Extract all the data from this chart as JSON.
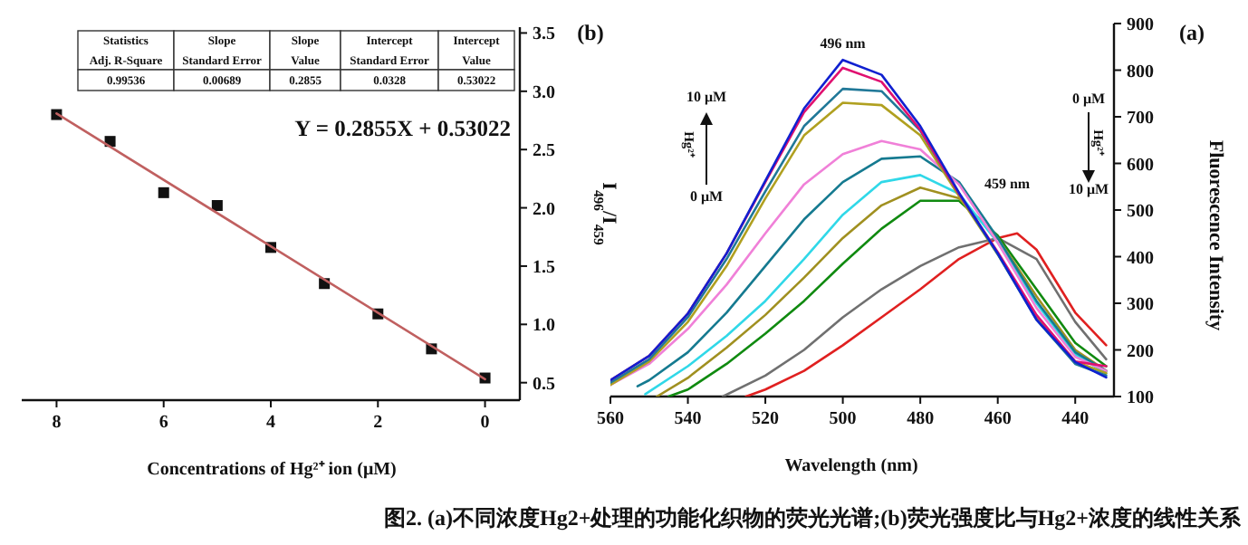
{
  "chart_data": [
    {
      "type": "scatter",
      "xlabel": "Concentrations of Hg²⁺ ion (μM)",
      "ylabel": "I$_{496}$/I$_{459}$",
      "xlim": [
        8.65,
        -0.65
      ],
      "ylim": [
        0.35,
        3.55
      ],
      "xticks": [
        0,
        2,
        4,
        6,
        8
      ],
      "yticks": [
        0.5,
        {
          "value": 1,
          "label": "1.0"
        },
        1.5,
        {
          "value": 2,
          "label": "2.0"
        },
        2.5,
        {
          "value": 3,
          "label": "3.0"
        },
        3.5
      ],
      "series": [
        {
          "marker": "square",
          "color": "#111111",
          "x": [
            8,
            7,
            6,
            5,
            4,
            3,
            2,
            1,
            0
          ],
          "values": [
            2.8,
            2.57,
            2.13,
            2.02,
            1.66,
            1.35,
            1.09,
            0.79,
            0.54
          ]
        },
        {
          "type": "line",
          "color": "#c06060",
          "x": [
            0,
            8
          ],
          "values": [
            0.53,
            2.81
          ]
        }
      ],
      "annotations": [
        "Statistics",
        "Slope",
        "Slope",
        "Intercept",
        "Intercept",
        "Adj. R-Square",
        "Standard Error",
        "Value",
        "Standard Error",
        "Value",
        "0.99536",
        "0.00689",
        "0.2855",
        "0.0328",
        "0.53022",
        "Y = 0.2855X + 0.53022",
        "(b)"
      ]
    },
    {
      "type": "line",
      "xlabel": "Wavelength (nm)",
      "ylabel": "Fluorescence Intensity",
      "xlim": [
        560,
        430
      ],
      "ylim": [
        100,
        900
      ],
      "xticks": [
        440,
        460,
        480,
        500,
        520,
        540,
        560
      ],
      "yticks": [
        100,
        200,
        300,
        400,
        500,
        600,
        700,
        800,
        900
      ],
      "series": [
        {
          "color": "#e02020",
          "x": [
            525,
            520,
            510,
            500,
            490,
            480,
            470,
            460,
            455,
            450,
            440,
            432
          ],
          "values": [
            100,
            115,
            155,
            210,
            270,
            330,
            395,
            440,
            450,
            415,
            280,
            210
          ]
        },
        {
          "color": "#707070",
          "x": [
            531,
            520,
            510,
            500,
            490,
            480,
            470,
            460,
            450,
            440,
            432
          ],
          "values": [
            100,
            145,
            200,
            270,
            330,
            380,
            420,
            440,
            395,
            260,
            180
          ]
        },
        {
          "color": "#108a10",
          "x": [
            545,
            540,
            530,
            520,
            510,
            500,
            490,
            480,
            470,
            460,
            450,
            440,
            432
          ],
          "values": [
            100,
            115,
            170,
            235,
            305,
            385,
            460,
            520,
            520,
            445,
            330,
            215,
            165
          ]
        },
        {
          "color": "#a09020",
          "x": [
            548,
            540,
            530,
            520,
            510,
            500,
            490,
            480,
            470,
            460,
            450,
            440,
            432
          ],
          "values": [
            100,
            140,
            205,
            275,
            355,
            440,
            510,
            548,
            525,
            440,
            315,
            200,
            155
          ]
        },
        {
          "color": "#30d8e8",
          "x": [
            551,
            540,
            530,
            520,
            510,
            500,
            490,
            480,
            470,
            460,
            450,
            440,
            432
          ],
          "values": [
            105,
            165,
            230,
            305,
            395,
            490,
            560,
            575,
            535,
            430,
            300,
            190,
            150
          ]
        },
        {
          "color": "#157a90",
          "x": [
            553,
            550,
            540,
            530,
            520,
            510,
            500,
            490,
            480,
            470,
            460,
            450,
            440,
            432
          ],
          "values": [
            122,
            135,
            195,
            280,
            380,
            480,
            560,
            610,
            615,
            560,
            440,
            305,
            195,
            155
          ]
        },
        {
          "color": "#f080d8",
          "x": [
            560,
            550,
            540,
            530,
            520,
            510,
            500,
            490,
            480,
            470,
            460,
            450,
            440,
            432
          ],
          "values": [
            125,
            170,
            245,
            340,
            450,
            555,
            620,
            648,
            630,
            555,
            430,
            290,
            185,
            155
          ]
        },
        {
          "color": "#b0a020",
          "x": [
            560,
            550,
            540,
            530,
            520,
            510,
            500,
            490,
            480,
            470,
            460,
            450,
            440,
            432
          ],
          "values": [
            125,
            175,
            260,
            380,
            525,
            660,
            730,
            725,
            660,
            530,
            405,
            270,
            175,
            150
          ]
        },
        {
          "color": "#207898",
          "x": [
            560,
            550,
            540,
            530,
            520,
            510,
            500,
            490,
            480,
            470,
            460,
            450,
            440,
            432
          ],
          "values": [
            130,
            180,
            270,
            395,
            540,
            680,
            760,
            755,
            670,
            535,
            405,
            265,
            170,
            145
          ]
        },
        {
          "color": "#e01070",
          "x": [
            560,
            550,
            540,
            530,
            520,
            510,
            500,
            490,
            480,
            470,
            460,
            450,
            440,
            432
          ],
          "values": [
            135,
            187,
            278,
            407,
            560,
            710,
            805,
            775,
            672,
            535,
            410,
            275,
            175,
            165
          ]
        },
        {
          "color": "#1020d0",
          "x": [
            560,
            550,
            540,
            530,
            520,
            510,
            500,
            490,
            480,
            470,
            460,
            450,
            440,
            432
          ],
          "values": [
            135,
            187,
            278,
            407,
            563,
            718,
            822,
            790,
            680,
            537,
            407,
            265,
            174,
            141
          ]
        }
      ],
      "annotations": [
        "(a)",
        {
          "text": "496 nm",
          "x": 500,
          "y": 840
        },
        "459 nm",
        "10 μM",
        "Hg²⁺",
        "0 μM",
        "0 μM",
        "Hg²⁺",
        "10 μM",
        "图2. (a)不同浓度Hg2+处理的功能化织物的荧光光谱;(b)荧光强度比与Hg2+浓度的线性关系"
      ]
    }
  ]
}
